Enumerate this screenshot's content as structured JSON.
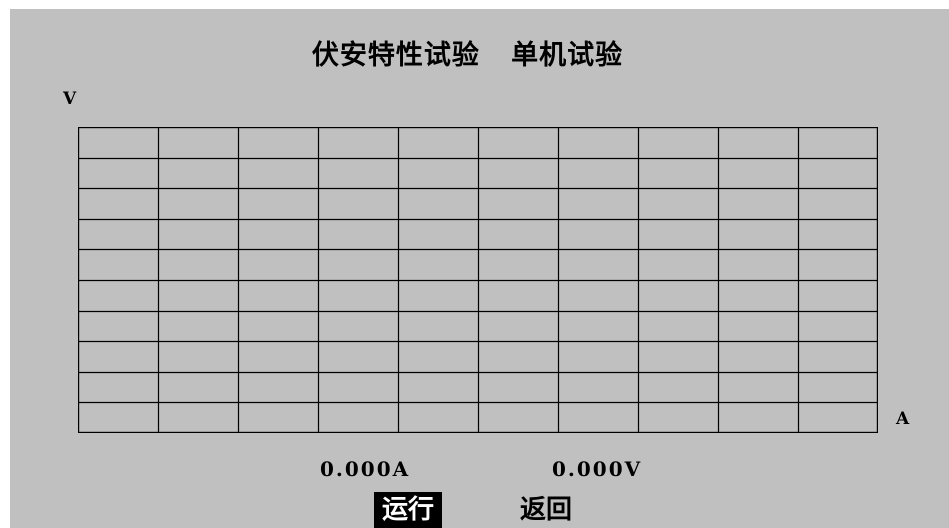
{
  "header": {
    "title": "伏安特性试验   单机试验"
  },
  "plot": {
    "y_axis_label": "V",
    "x_axis_label": "A",
    "grid": true,
    "grid_columns": 10,
    "grid_rows": 10
  },
  "readouts": {
    "current": "0.000A",
    "voltage": "0.000V"
  },
  "buttons": {
    "run_label": "运行",
    "back_label": "返回"
  },
  "colors": {
    "background": "#c0c0c0",
    "foreground": "#000000",
    "selected_button_bg": "#000000",
    "selected_button_fg": "#ffffff"
  }
}
